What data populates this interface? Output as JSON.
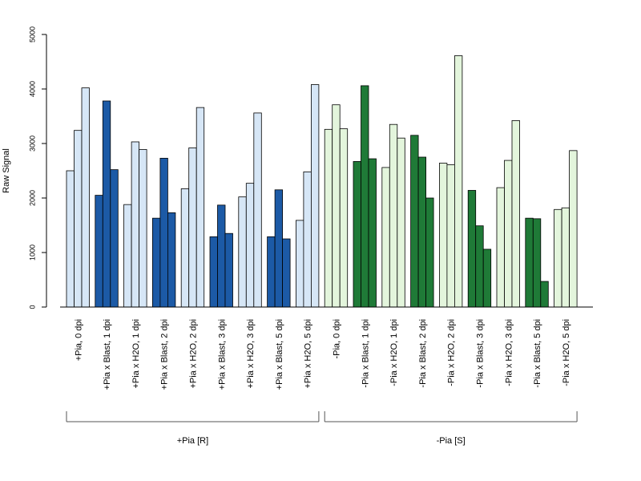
{
  "chart_data": {
    "type": "bar",
    "ylabel": "Raw Signal",
    "ylim": [
      0,
      5000
    ],
    "yticks": [
      0,
      1000,
      2000,
      3000,
      4000,
      5000
    ],
    "grid": false,
    "bars_per_category": 3,
    "categories": [
      {
        "label": "+Pia, 0 dpi",
        "values": [
          2500,
          3240,
          4020
        ],
        "color": "#d6e6f6"
      },
      {
        "label": "+Pia x Blast, 1 dpi",
        "values": [
          2050,
          3780,
          2520
        ],
        "color": "#1c5aa6"
      },
      {
        "label": "+Pia x H2O, 1 dpi",
        "values": [
          1880,
          3030,
          2890
        ],
        "color": "#d6e6f6"
      },
      {
        "label": "+Pia x Blast, 2 dpi",
        "values": [
          1630,
          2730,
          1730
        ],
        "color": "#1c5aa6"
      },
      {
        "label": "+Pia x H2O, 2 dpi",
        "values": [
          2170,
          2920,
          3660
        ],
        "color": "#d6e6f6"
      },
      {
        "label": "+Pia x Blast, 3 dpi",
        "values": [
          1290,
          1870,
          1350
        ],
        "color": "#1c5aa6"
      },
      {
        "label": "+Pia x H2O, 3 dpi",
        "values": [
          2020,
          2270,
          3560
        ],
        "color": "#d6e6f6"
      },
      {
        "label": "+Pia x Blast, 5 dpi",
        "values": [
          1290,
          2150,
          1250
        ],
        "color": "#1c5aa6"
      },
      {
        "label": "+Pia x H2O, 5 dpi",
        "values": [
          1590,
          2480,
          4080
        ],
        "color": "#d6e6f6"
      },
      {
        "label": "-Pia, 0 dpi",
        "values": [
          3260,
          3710,
          3270
        ],
        "color": "#e3f5dc"
      },
      {
        "label": "-Pia x Blast, 1 dpi",
        "values": [
          2670,
          4060,
          2720
        ],
        "color": "#1f7a37"
      },
      {
        "label": "-Pia x H2O, 1 dpi",
        "values": [
          2560,
          3350,
          3100
        ],
        "color": "#e3f5dc"
      },
      {
        "label": "-Pia x Blast, 2 dpi",
        "values": [
          3150,
          2750,
          2000
        ],
        "color": "#1f7a37"
      },
      {
        "label": "-Pia x H2O, 2 dpi",
        "values": [
          2640,
          2610,
          4610
        ],
        "color": "#e3f5dc"
      },
      {
        "label": "-Pia x Blast, 3 dpi",
        "values": [
          2140,
          1490,
          1060
        ],
        "color": "#1f7a37"
      },
      {
        "label": "-Pia x H2O, 3 dpi",
        "values": [
          2190,
          2690,
          3420
        ],
        "color": "#e3f5dc"
      },
      {
        "label": "-Pia x Blast, 5 dpi",
        "values": [
          1630,
          1620,
          470
        ],
        "color": "#1f7a37"
      },
      {
        "label": "-Pia x H2O, 5 dpi",
        "values": [
          1790,
          1820,
          2870
        ],
        "color": "#e3f5dc"
      }
    ],
    "groups": [
      {
        "label": "+Pia [R]",
        "from": 0,
        "to": 8
      },
      {
        "label": "-Pia [S]",
        "from": 9,
        "to": 17
      }
    ]
  }
}
